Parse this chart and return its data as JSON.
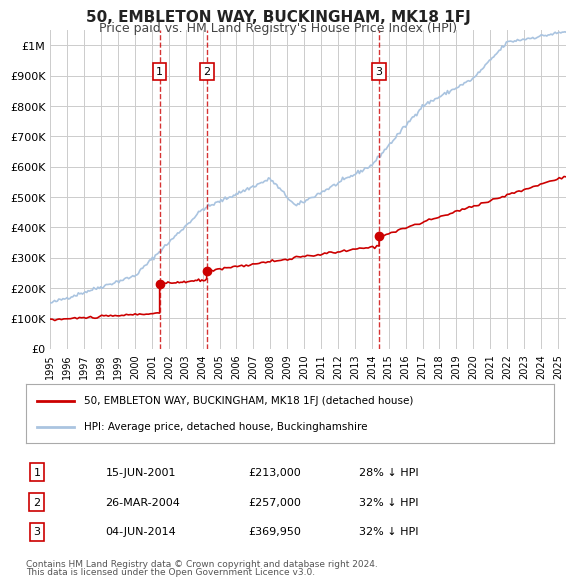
{
  "title": "50, EMBLETON WAY, BUCKINGHAM, MK18 1FJ",
  "subtitle": "Price paid vs. HM Land Registry's House Price Index (HPI)",
  "background_color": "#ffffff",
  "plot_bg_color": "#ffffff",
  "grid_color": "#cccccc",
  "ylabel_color": "#000000",
  "ylim": [
    0,
    1050000
  ],
  "yticks": [
    0,
    100000,
    200000,
    300000,
    400000,
    500000,
    600000,
    700000,
    800000,
    900000,
    1000000
  ],
  "ytick_labels": [
    "£0",
    "£100K",
    "£200K",
    "£300K",
    "£400K",
    "£500K",
    "£600K",
    "£700K",
    "£800K",
    "£900K",
    "£1M"
  ],
  "hpi_color": "#aac4e0",
  "property_color": "#cc0000",
  "transaction_color": "#cc0000",
  "annotation_color": "#cc0000",
  "dashed_line_color": "#cc0000",
  "transactions": [
    {
      "date_num": 2001.46,
      "price": 213000,
      "label": "1"
    },
    {
      "date_num": 2004.24,
      "price": 257000,
      "label": "2"
    },
    {
      "date_num": 2014.43,
      "price": 369950,
      "label": "3"
    }
  ],
  "table_entries": [
    {
      "num": "1",
      "date": "15-JUN-2001",
      "price": "£213,000",
      "hpi": "28% ↓ HPI"
    },
    {
      "num": "2",
      "date": "26-MAR-2004",
      "price": "£257,000",
      "hpi": "32% ↓ HPI"
    },
    {
      "num": "3",
      "date": "04-JUN-2014",
      "price": "£369,950",
      "hpi": "32% ↓ HPI"
    }
  ],
  "legend_line1": "50, EMBLETON WAY, BUCKINGHAM, MK18 1FJ (detached house)",
  "legend_line2": "HPI: Average price, detached house, Buckinghamshire",
  "footer1": "Contains HM Land Registry data © Crown copyright and database right 2024.",
  "footer2": "This data is licensed under the Open Government Licence v3.0.",
  "xmin": 1995.0,
  "xmax": 2025.5
}
